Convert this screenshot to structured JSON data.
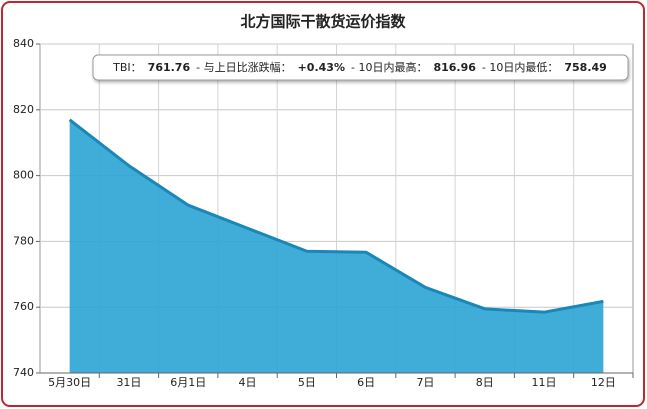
{
  "chart_data": {
    "type": "area",
    "title": "北方国际干散货运价指数",
    "categories": [
      "5月30日",
      "31日",
      "6月1日",
      "4日",
      "5日",
      "6日",
      "7日",
      "8日",
      "11日",
      "12日"
    ],
    "values": [
      816.96,
      803,
      791,
      784,
      777,
      776.7,
      766,
      759.5,
      758.49,
      761.76
    ],
    "color": "#2ba3d4",
    "line_color": "#1b86b8",
    "ylim": [
      740,
      840
    ],
    "yticks": [
      740,
      760,
      780,
      800,
      820,
      840
    ],
    "grid": true,
    "annotation": [
      "TBI：",
      "761.76",
      "- 与上日比涨跌幅：",
      "+0.43%",
      "- 10日内最高：",
      "816.96",
      "- 10日内最低：",
      "758.49"
    ]
  }
}
